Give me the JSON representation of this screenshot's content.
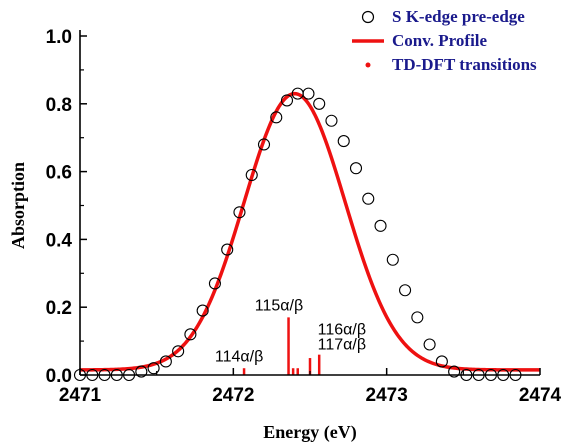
{
  "chart_data": {
    "type": "scatter",
    "xlabel": "Energy (eV)",
    "ylabel": "Absorption",
    "xlim": [
      2471,
      2474
    ],
    "ylim": [
      0,
      1.0
    ],
    "x_ticks": [
      2471,
      2472,
      2473,
      2474
    ],
    "x_tick_labels": [
      "2471",
      "2472",
      "2473",
      "2474"
    ],
    "y_ticks": [
      0.0,
      0.2,
      0.4,
      0.6,
      0.8,
      1.0
    ],
    "y_tick_labels": [
      "0.0",
      "0.2",
      "0.4",
      "0.6",
      "0.8",
      "1.0"
    ],
    "legend_position": "top-right",
    "series": [
      {
        "name": "S K-edge pre-edge",
        "style": "open-circle",
        "color": "#000000",
        "points": [
          [
            2471.0,
            0.0
          ],
          [
            2471.08,
            0.0
          ],
          [
            2471.16,
            0.0
          ],
          [
            2471.24,
            0.0
          ],
          [
            2471.32,
            0.0
          ],
          [
            2471.4,
            0.01
          ],
          [
            2471.48,
            0.02
          ],
          [
            2471.56,
            0.04
          ],
          [
            2471.64,
            0.07
          ],
          [
            2471.72,
            0.12
          ],
          [
            2471.8,
            0.19
          ],
          [
            2471.88,
            0.27
          ],
          [
            2471.96,
            0.37
          ],
          [
            2472.04,
            0.48
          ],
          [
            2472.12,
            0.59
          ],
          [
            2472.2,
            0.68
          ],
          [
            2472.28,
            0.76
          ],
          [
            2472.35,
            0.81
          ],
          [
            2472.42,
            0.83
          ],
          [
            2472.49,
            0.83
          ],
          [
            2472.56,
            0.8
          ],
          [
            2472.64,
            0.75
          ],
          [
            2472.72,
            0.69
          ],
          [
            2472.8,
            0.61
          ],
          [
            2472.88,
            0.52
          ],
          [
            2472.96,
            0.44
          ],
          [
            2473.04,
            0.34
          ],
          [
            2473.12,
            0.25
          ],
          [
            2473.2,
            0.17
          ],
          [
            2473.28,
            0.09
          ],
          [
            2473.36,
            0.04
          ],
          [
            2473.44,
            0.01
          ],
          [
            2473.52,
            0.0
          ],
          [
            2473.6,
            0.0
          ],
          [
            2473.68,
            0.0
          ],
          [
            2473.76,
            0.0
          ],
          [
            2473.84,
            0.0
          ]
        ]
      },
      {
        "name": "Conv. Profile",
        "style": "line",
        "color": "#ee1111",
        "peak_x": 2472.4,
        "peak_y": 0.83,
        "baseline": 0.015,
        "sigma": 0.33
      },
      {
        "name": "TD-DFT  transitions",
        "style": "stick",
        "color": "#ee1111",
        "sticks": [
          {
            "x": 2472.07,
            "y": 0.02
          },
          {
            "x": 2472.36,
            "y": 0.17
          },
          {
            "x": 2472.39,
            "y": 0.02
          },
          {
            "x": 2472.42,
            "y": 0.02
          },
          {
            "x": 2472.5,
            "y": 0.05
          },
          {
            "x": 2472.56,
            "y": 0.06
          }
        ]
      }
    ],
    "annotations": [
      {
        "text": "114α/β",
        "x": 2471.88,
        "y": 0.04
      },
      {
        "text": "115α/β",
        "x": 2472.14,
        "y": 0.19
      },
      {
        "text": "116α/β",
        "x": 2472.55,
        "y": 0.12
      },
      {
        "text": "117α/β",
        "x": 2472.55,
        "y": 0.075
      }
    ]
  }
}
